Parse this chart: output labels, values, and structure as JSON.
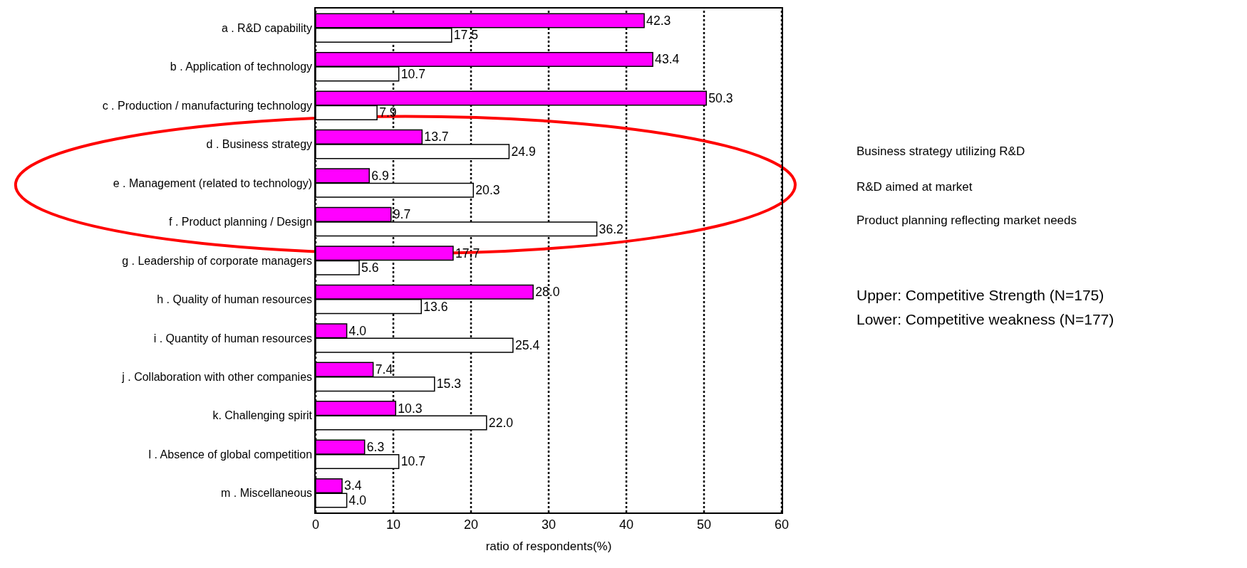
{
  "chart_data": {
    "type": "bar",
    "orientation": "horizontal",
    "xlabel": "ratio of respondents(%)",
    "categories": [
      "a . R&D capability",
      "b . Application of technology",
      "c . Production / manufacturing technology",
      "d . Business strategy",
      "e . Management (related to technology)",
      "f . Product planning / Design",
      "g . Leadership of corporate managers",
      "h . Quality of human resources",
      "i . Quantity of human resources",
      "j . Collaboration with other companies",
      "k. Challenging spirit",
      "l . Absence of global competition",
      "m . Miscellaneous"
    ],
    "series": [
      {
        "color": "#ff00ff",
        "values": [
          42.3,
          43.4,
          50.3,
          13.7,
          6.9,
          9.7,
          17.7,
          28.0,
          4.0,
          7.4,
          10.3,
          6.3,
          3.4
        ],
        "value_labels": [
          "42.3",
          "43.4",
          "50.3",
          "13.7",
          "6.9",
          "9.7",
          "17.7",
          "28.0",
          "4.0",
          "7.4",
          "10.3",
          "6.3",
          "3.4"
        ]
      },
      {
        "color": "#ffffff",
        "values": [
          17.5,
          10.7,
          7.9,
          24.9,
          20.3,
          36.2,
          5.6,
          13.6,
          25.4,
          15.3,
          22.0,
          10.7,
          4.0
        ],
        "value_labels": [
          "17.5",
          "10.7",
          "7.9",
          "24.9",
          "20.3",
          "36.2",
          "5.6",
          "13.6",
          "25.4",
          "15.3",
          "22.0",
          "10.7",
          "4.0"
        ]
      }
    ],
    "xlim": [
      0,
      60
    ],
    "xticks": [
      0,
      10,
      20,
      30,
      40,
      50,
      60
    ],
    "grid": "x",
    "annotations": [
      "Business strategy utilizing R&D",
      "R&D aimed at market",
      "Product planning reflecting market needs",
      "Upper: Competitive Strength (N=175)",
      "Lower: Competitive weakness (N=177)"
    ]
  }
}
